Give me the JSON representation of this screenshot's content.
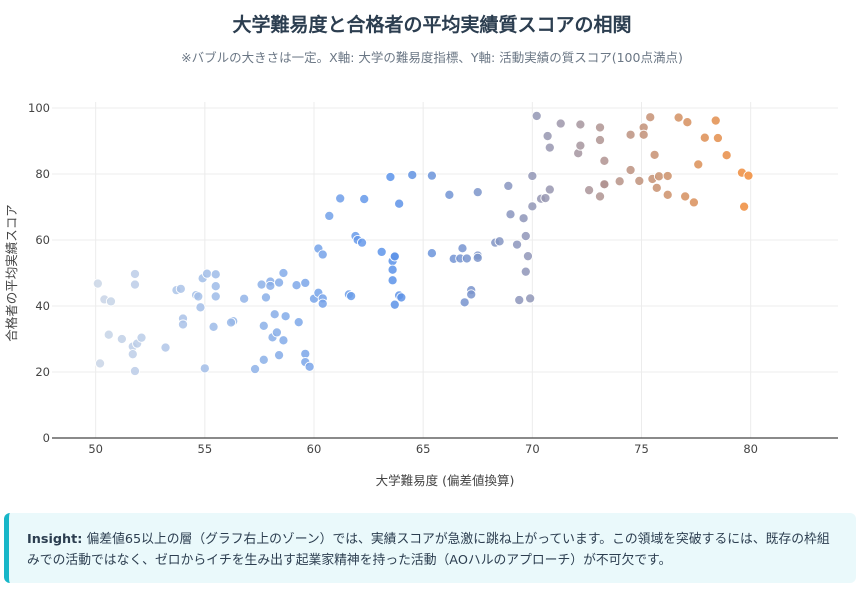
{
  "header": {
    "title": "大学難易度と合格者の平均実績質スコアの相関",
    "subtitle": "※バブルの大きさは一定。X軸: 大学の難易度指標、Y軸: 活動実績の質スコア(100点満点)"
  },
  "insight": {
    "label": "Insight:",
    "text": "偏差値65以上の層（グラフ右上のゾーン）では、実績スコアが急激に跳ね上がっています。この領域を突破するには、既存の枠組みでの活動ではなく、ゼロからイチを生み出す起業家精神を持った活動（AOハルのアプローチ）が不可欠です。"
  },
  "colors": {
    "axis": "#444444",
    "grid": "#ececec",
    "low": "#cbd6e6",
    "mid": "#5b93ea",
    "high": "#9a96ae",
    "top": "#f28c38"
  },
  "chart_data": {
    "type": "scatter",
    "title": "大学難易度と合格者の平均実績質スコアの相関",
    "xlabel": "大学難易度 (偏差値換算)",
    "ylabel": "合格者の平均実績スコア",
    "xlim": [
      48,
      84
    ],
    "ylim": [
      0,
      100
    ],
    "xticks": [
      50,
      55,
      60,
      65,
      70,
      75,
      80
    ],
    "yticks": [
      0,
      20,
      40,
      60,
      80,
      100
    ],
    "grid": true,
    "points": [
      [
        50.1,
        46.8
      ],
      [
        50.4,
        42.0
      ],
      [
        50.7,
        41.4
      ],
      [
        50.2,
        22.6
      ],
      [
        50.6,
        31.3
      ],
      [
        51.2,
        30.0
      ],
      [
        51.8,
        49.7
      ],
      [
        51.8,
        46.5
      ],
      [
        51.7,
        27.7
      ],
      [
        51.9,
        28.6
      ],
      [
        51.7,
        25.4
      ],
      [
        51.8,
        20.3
      ],
      [
        52.1,
        30.4
      ],
      [
        53.2,
        27.4
      ],
      [
        53.7,
        44.8
      ],
      [
        53.9,
        45.2
      ],
      [
        54.0,
        36.2
      ],
      [
        54.0,
        34.4
      ],
      [
        54.6,
        43.3
      ],
      [
        54.7,
        42.9
      ],
      [
        54.8,
        39.6
      ],
      [
        54.9,
        48.4
      ],
      [
        55.1,
        49.8
      ],
      [
        55.0,
        21.1
      ],
      [
        55.5,
        49.6
      ],
      [
        55.5,
        46.0
      ],
      [
        55.5,
        42.9
      ],
      [
        55.4,
        33.7
      ],
      [
        56.3,
        35.4
      ],
      [
        56.2,
        35.0
      ],
      [
        56.8,
        42.2
      ],
      [
        57.3,
        20.9
      ],
      [
        57.6,
        46.5
      ],
      [
        57.8,
        42.6
      ],
      [
        57.7,
        34.0
      ],
      [
        57.7,
        23.7
      ],
      [
        58.0,
        47.4
      ],
      [
        58.0,
        46.1
      ],
      [
        58.1,
        30.5
      ],
      [
        58.2,
        37.5
      ],
      [
        58.3,
        32.0
      ],
      [
        58.4,
        47.1
      ],
      [
        58.4,
        25.1
      ],
      [
        58.6,
        50.0
      ],
      [
        58.6,
        29.6
      ],
      [
        58.7,
        36.9
      ],
      [
        59.2,
        46.3
      ],
      [
        59.3,
        35.1
      ],
      [
        59.6,
        47.0
      ],
      [
        59.6,
        25.5
      ],
      [
        59.6,
        23.0
      ],
      [
        59.8,
        21.6
      ],
      [
        60.0,
        42.2
      ],
      [
        60.2,
        57.4
      ],
      [
        60.2,
        44.0
      ],
      [
        60.4,
        55.6
      ],
      [
        60.4,
        42.3
      ],
      [
        60.4,
        40.7
      ],
      [
        60.7,
        67.3
      ],
      [
        61.2,
        72.6
      ],
      [
        61.6,
        43.5
      ],
      [
        61.7,
        43.0
      ],
      [
        61.9,
        61.2
      ],
      [
        62.0,
        60.0
      ],
      [
        62.2,
        59.2
      ],
      [
        62.3,
        72.4
      ],
      [
        63.1,
        56.4
      ],
      [
        63.5,
        79.1
      ],
      [
        63.6,
        53.6
      ],
      [
        63.6,
        51.0
      ],
      [
        63.6,
        47.8
      ],
      [
        63.7,
        55.2
      ],
      [
        63.7,
        55.0
      ],
      [
        63.7,
        40.4
      ],
      [
        63.9,
        71.0
      ],
      [
        63.9,
        43.2
      ],
      [
        64.0,
        42.6
      ],
      [
        64.5,
        79.7
      ],
      [
        65.4,
        79.5
      ],
      [
        65.4,
        56.0
      ],
      [
        66.2,
        73.7
      ],
      [
        66.4,
        54.3
      ],
      [
        66.7,
        54.4
      ],
      [
        66.8,
        57.5
      ],
      [
        66.9,
        41.1
      ],
      [
        67.0,
        54.4
      ],
      [
        67.2,
        44.8
      ],
      [
        67.2,
        43.5
      ],
      [
        67.5,
        74.5
      ],
      [
        67.5,
        55.3
      ],
      [
        67.5,
        54.6
      ],
      [
        68.3,
        59.2
      ],
      [
        68.5,
        59.6
      ],
      [
        68.9,
        76.4
      ],
      [
        69.0,
        67.8
      ],
      [
        69.3,
        58.6
      ],
      [
        69.4,
        41.8
      ],
      [
        69.6,
        66.6
      ],
      [
        69.7,
        61.2
      ],
      [
        69.7,
        50.4
      ],
      [
        69.8,
        55.1
      ],
      [
        69.9,
        42.3
      ],
      [
        70.0,
        79.4
      ],
      [
        70.0,
        70.2
      ],
      [
        70.2,
        97.6
      ],
      [
        70.4,
        72.5
      ],
      [
        70.6,
        72.7
      ],
      [
        70.7,
        91.5
      ],
      [
        70.8,
        88.0
      ],
      [
        70.8,
        75.3
      ],
      [
        71.3,
        95.3
      ],
      [
        72.1,
        86.3
      ],
      [
        72.2,
        88.6
      ],
      [
        72.2,
        95.0
      ],
      [
        72.6,
        75.1
      ],
      [
        73.1,
        94.1
      ],
      [
        73.1,
        90.3
      ],
      [
        73.1,
        73.2
      ],
      [
        73.3,
        84.0
      ],
      [
        73.3,
        76.7
      ],
      [
        73.3,
        76.9
      ],
      [
        74.0,
        77.8
      ],
      [
        74.5,
        91.9
      ],
      [
        74.5,
        81.2
      ],
      [
        74.9,
        77.9
      ],
      [
        75.1,
        94.1
      ],
      [
        75.1,
        91.9
      ],
      [
        75.4,
        97.2
      ],
      [
        75.5,
        78.5
      ],
      [
        75.6,
        85.8
      ],
      [
        75.7,
        75.8
      ],
      [
        75.8,
        79.3
      ],
      [
        76.2,
        73.7
      ],
      [
        76.2,
        79.4
      ],
      [
        76.7,
        97.1
      ],
      [
        77.1,
        95.7
      ],
      [
        77.0,
        73.2
      ],
      [
        77.4,
        71.4
      ],
      [
        77.6,
        82.9
      ],
      [
        77.9,
        91.0
      ],
      [
        78.4,
        96.2
      ],
      [
        78.5,
        90.9
      ],
      [
        78.9,
        85.7
      ],
      [
        79.6,
        80.4
      ],
      [
        79.7,
        70.1
      ],
      [
        79.9,
        79.5
      ]
    ]
  }
}
